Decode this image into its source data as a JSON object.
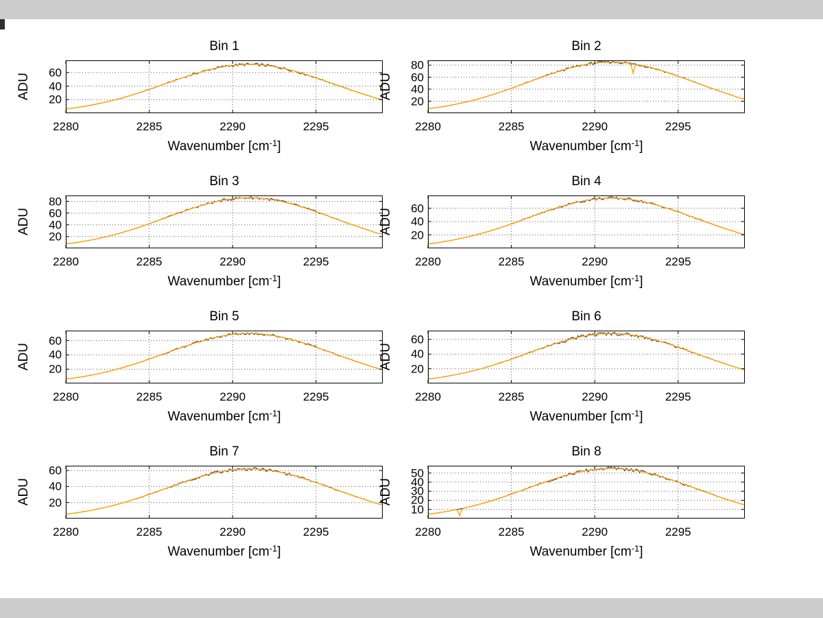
{
  "window": {
    "top_bar_color": "#cdcdcd",
    "bottom_bar_color": "#cdcdcd",
    "canvas_color": "#ffffff",
    "corner_mark_color": "#2f2f2f"
  },
  "axis_style": {
    "grid_color": "#555555",
    "axis_color": "#000000",
    "fit_color": "#ffa400",
    "measured_color": "#3a3a3a"
  },
  "chart_data": [
    {
      "type": "line",
      "title": "Bin 1",
      "xlabel": {
        "pre": "Wavenumber [cm",
        "sup": "-1",
        "post": "]"
      },
      "ylabel": "ADU",
      "xlim": [
        2280,
        2299
      ],
      "xticks": [
        2280,
        2285,
        2290,
        2295
      ],
      "ylim": [
        0,
        78
      ],
      "yticks": [
        20,
        40,
        60
      ],
      "grid": true,
      "x": [
        2280,
        2281,
        2282,
        2283,
        2284,
        2285,
        2286,
        2287,
        2288,
        2289,
        2290,
        2291,
        2292,
        2293,
        2294,
        2295,
        2296,
        2297,
        2298,
        2299
      ],
      "y": [
        6.4,
        9.7,
        14.3,
        20,
        27,
        35.1,
        43.7,
        52.3,
        60.1,
        66.5,
        70.6,
        72,
        70.6,
        66.5,
        60.1,
        52.3,
        43.7,
        35.1,
        27,
        20
      ],
      "series": [
        {
          "name": "measured",
          "noise_amplitude": 2.2
        },
        {
          "name": "fit"
        }
      ],
      "spikes": []
    },
    {
      "type": "line",
      "title": "Bin 2",
      "xlabel": {
        "pre": "Wavenumber [cm",
        "sup": "-1",
        "post": "]"
      },
      "ylabel": "ADU",
      "xlim": [
        2280,
        2299
      ],
      "xticks": [
        2280,
        2285,
        2290,
        2295
      ],
      "ylim": [
        0,
        88
      ],
      "yticks": [
        20,
        40,
        60,
        80
      ],
      "grid": true,
      "x": [
        2280,
        2281,
        2282,
        2283,
        2284,
        2285,
        2286,
        2287,
        2288,
        2289,
        2290,
        2291,
        2292,
        2293,
        2294,
        2295,
        2296,
        2297,
        2298,
        2299
      ],
      "y": [
        7.6,
        11.5,
        16.8,
        23.6,
        31.9,
        41.4,
        51.6,
        61.7,
        71,
        78.5,
        83.3,
        85,
        83.3,
        78.5,
        71,
        61.7,
        51.6,
        41.4,
        31.9,
        23.6
      ],
      "series": [
        {
          "name": "measured",
          "noise_amplitude": 2.2
        },
        {
          "name": "fit"
        }
      ],
      "spikes": [
        {
          "x": 2292.3,
          "y": 67
        }
      ]
    },
    {
      "type": "line",
      "title": "Bin 3",
      "xlabel": {
        "pre": "Wavenumber [cm",
        "sup": "-1",
        "post": "]"
      },
      "ylabel": "ADU",
      "xlim": [
        2280,
        2299
      ],
      "xticks": [
        2280,
        2285,
        2290,
        2295
      ],
      "ylim": [
        0,
        90
      ],
      "yticks": [
        20,
        40,
        60,
        80
      ],
      "grid": true,
      "x": [
        2280,
        2281,
        2282,
        2283,
        2284,
        2285,
        2286,
        2287,
        2288,
        2289,
        2290,
        2291,
        2292,
        2293,
        2294,
        2295,
        2296,
        2297,
        2298,
        2299
      ],
      "y": [
        7.7,
        11.6,
        17,
        23.9,
        32.3,
        41.9,
        52.2,
        62.4,
        71.8,
        79.4,
        84.3,
        86,
        84.3,
        79.4,
        71.8,
        62.4,
        52.2,
        41.9,
        32.3,
        23.9
      ],
      "series": [
        {
          "name": "measured",
          "noise_amplitude": 2.5
        },
        {
          "name": "fit"
        }
      ],
      "spikes": []
    },
    {
      "type": "line",
      "title": "Bin 4",
      "xlabel": {
        "pre": "Wavenumber [cm",
        "sup": "-1",
        "post": "]"
      },
      "ylabel": "ADU",
      "xlim": [
        2280,
        2299
      ],
      "xticks": [
        2280,
        2285,
        2290,
        2295
      ],
      "ylim": [
        0,
        79
      ],
      "yticks": [
        20,
        40,
        60
      ],
      "grid": true,
      "x": [
        2280,
        2281,
        2282,
        2283,
        2284,
        2285,
        2286,
        2287,
        2288,
        2289,
        2290,
        2291,
        2292,
        2293,
        2294,
        2295,
        2296,
        2297,
        2298,
        2299
      ],
      "y": [
        6.7,
        10.1,
        14.9,
        20.9,
        28.1,
        36.5,
        45.5,
        54.5,
        62.6,
        69.2,
        73.5,
        75,
        73.5,
        69.2,
        62.6,
        54.5,
        45.5,
        36.5,
        28.1,
        20.9
      ],
      "series": [
        {
          "name": "measured",
          "noise_amplitude": 2.2
        },
        {
          "name": "fit"
        }
      ],
      "spikes": []
    },
    {
      "type": "line",
      "title": "Bin 5",
      "xlabel": {
        "pre": "Wavenumber [cm",
        "sup": "-1",
        "post": "]"
      },
      "ylabel": "ADU",
      "xlim": [
        2280,
        2299
      ],
      "xticks": [
        2280,
        2285,
        2290,
        2295
      ],
      "ylim": [
        0,
        74
      ],
      "yticks": [
        20,
        40,
        60
      ],
      "grid": true,
      "x": [
        2280,
        2281,
        2282,
        2283,
        2284,
        2285,
        2286,
        2287,
        2288,
        2289,
        2290,
        2291,
        2292,
        2293,
        2294,
        2295,
        2296,
        2297,
        2298,
        2299
      ],
      "y": [
        6.2,
        9.5,
        13.9,
        19.5,
        26.3,
        34.1,
        42.5,
        50.8,
        58.5,
        64.6,
        68.6,
        70,
        68.6,
        64.6,
        58.5,
        50.8,
        42.5,
        34.1,
        26.3,
        19.5
      ],
      "series": [
        {
          "name": "measured",
          "noise_amplitude": 2.0
        },
        {
          "name": "fit"
        }
      ],
      "spikes": []
    },
    {
      "type": "line",
      "title": "Bin 6",
      "xlabel": {
        "pre": "Wavenumber [cm",
        "sup": "-1",
        "post": "]"
      },
      "ylabel": "ADU",
      "xlim": [
        2280,
        2299
      ],
      "xticks": [
        2280,
        2285,
        2290,
        2295
      ],
      "ylim": [
        0,
        72
      ],
      "yticks": [
        20,
        40,
        60
      ],
      "grid": true,
      "x": [
        2280,
        2281,
        2282,
        2283,
        2284,
        2285,
        2286,
        2287,
        2288,
        2289,
        2290,
        2291,
        2292,
        2293,
        2294,
        2295,
        2296,
        2297,
        2298,
        2299
      ],
      "y": [
        6.1,
        9.2,
        13.5,
        18.9,
        25.5,
        33.1,
        41.3,
        49.4,
        56.8,
        62.8,
        66.6,
        68,
        66.6,
        62.8,
        56.8,
        49.4,
        41.3,
        33.1,
        25.5,
        18.9
      ],
      "series": [
        {
          "name": "measured",
          "noise_amplitude": 2.6
        },
        {
          "name": "fit"
        }
      ],
      "spikes": []
    },
    {
      "type": "line",
      "title": "Bin 7",
      "xlabel": {
        "pre": "Wavenumber [cm",
        "sup": "-1",
        "post": "]"
      },
      "ylabel": "ADU",
      "xlim": [
        2280,
        2299
      ],
      "xticks": [
        2280,
        2285,
        2290,
        2295
      ],
      "ylim": [
        0,
        66
      ],
      "yticks": [
        20,
        40,
        60
      ],
      "grid": true,
      "x": [
        2280,
        2281,
        2282,
        2283,
        2284,
        2285,
        2286,
        2287,
        2288,
        2289,
        2290,
        2291,
        2292,
        2293,
        2294,
        2295,
        2296,
        2297,
        2298,
        2299
      ],
      "y": [
        5.5,
        8.4,
        12.3,
        17.2,
        23.3,
        30.2,
        37.6,
        45,
        51.8,
        57.2,
        60.8,
        62,
        60.8,
        57.2,
        51.8,
        45,
        37.6,
        30.2,
        23.3,
        17.2
      ],
      "series": [
        {
          "name": "measured",
          "noise_amplitude": 2.0
        },
        {
          "name": "fit"
        }
      ],
      "spikes": []
    },
    {
      "type": "line",
      "title": "Bin 8",
      "xlabel": {
        "pre": "Wavenumber [cm",
        "sup": "-1",
        "post": "]"
      },
      "ylabel": "ADU",
      "xlim": [
        2280,
        2299
      ],
      "xticks": [
        2280,
        2285,
        2290,
        2295
      ],
      "ylim": [
        0,
        58
      ],
      "yticks": [
        10,
        20,
        30,
        40,
        50
      ],
      "grid": true,
      "x": [
        2280,
        2281,
        2282,
        2283,
        2284,
        2285,
        2286,
        2287,
        2288,
        2289,
        2290,
        2291,
        2292,
        2293,
        2294,
        2295,
        2296,
        2297,
        2298,
        2299
      ],
      "y": [
        4.9,
        7.4,
        10.9,
        15.3,
        20.6,
        26.8,
        33.4,
        39.9,
        45.9,
        50.8,
        53.9,
        55,
        53.9,
        50.8,
        45.9,
        39.9,
        33.4,
        26.8,
        20.6,
        15.3
      ],
      "series": [
        {
          "name": "measured",
          "noise_amplitude": 2.0
        },
        {
          "name": "fit"
        }
      ],
      "spikes": [
        {
          "x": 2281.9,
          "y": 3
        }
      ]
    }
  ]
}
